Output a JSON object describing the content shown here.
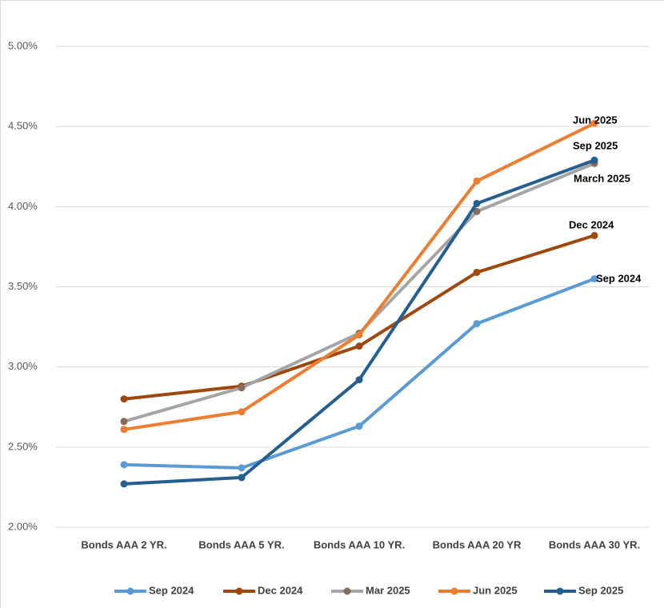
{
  "chart_data": {
    "type": "line",
    "categories": [
      "Bonds AAA 2 YR.",
      "Bonds AAA 5 YR.",
      "Bonds AAA 10 YR.",
      "Bonds AAA 20 YR",
      "Bonds AAA 30 YR."
    ],
    "series": [
      {
        "name": "Sep 2024",
        "color": "#5b9bd5",
        "values": [
          2.39,
          2.37,
          2.63,
          3.27,
          3.55
        ]
      },
      {
        "name": "Dec 2024",
        "color": "#9e480e",
        "values": [
          2.8,
          2.88,
          3.13,
          3.59,
          3.82
        ]
      },
      {
        "name": "Mar 2025",
        "color": "#a5a5a5",
        "marker_color": "#8a6a58",
        "values": [
          2.66,
          2.87,
          3.21,
          3.97,
          4.27
        ]
      },
      {
        "name": "Jun 2025",
        "color": "#ed7d31",
        "values": [
          2.61,
          2.72,
          3.2,
          4.16,
          4.52
        ]
      },
      {
        "name": "Sep 2025",
        "color": "#255e91",
        "values": [
          2.27,
          2.31,
          2.92,
          4.02,
          4.29
        ]
      }
    ],
    "annotations": [
      "Jun 2025",
      "Sep 2025",
      "March 2025",
      "Dec 2024",
      "Sep 2024"
    ],
    "ylim": [
      2,
      5
    ],
    "yticks": [
      {
        "value": 2,
        "label": "2.00%"
      },
      {
        "value": 2.5,
        "label": "2.50%"
      },
      {
        "value": 3,
        "label": "3.00%"
      },
      {
        "value": 3.5,
        "label": "3.50%"
      },
      {
        "value": 4,
        "label": "4.00%"
      },
      {
        "value": 4.5,
        "label": "4.50%"
      },
      {
        "value": 5,
        "label": "5.00%"
      }
    ],
    "grid": true,
    "legend": "bottom"
  }
}
